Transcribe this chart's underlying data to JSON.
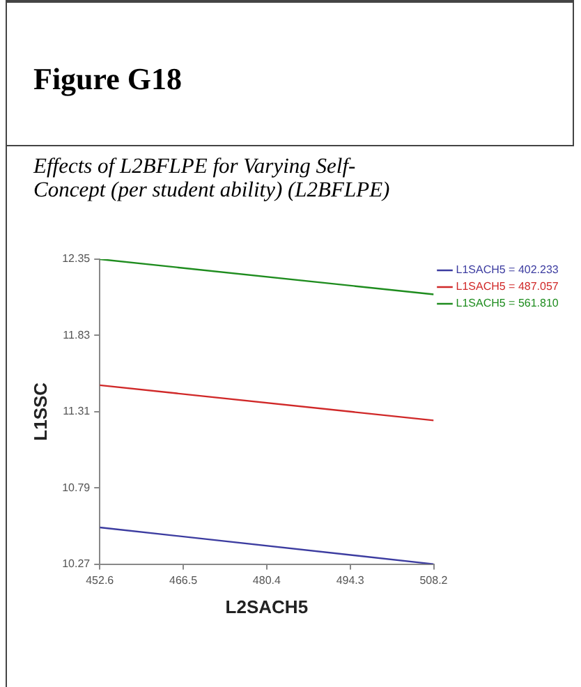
{
  "chart_data": {
    "type": "line",
    "title": "Figure G18",
    "subtitle": "Effects of L2BFLPE for Varying Self-Concept (per student ability) (L2BFLPE)",
    "xlabel": "L2SACH5",
    "ylabel": "L1SSC",
    "x": [
      452.6,
      508.2
    ],
    "series": [
      {
        "name": "L1SACH5 = 402.233",
        "color": "#3c3ca0",
        "values": [
          10.52,
          10.27
        ]
      },
      {
        "name": "L1SACH5 = 487.057",
        "color": "#d02828",
        "values": [
          11.49,
          11.25
        ]
      },
      {
        "name": "L1SACH5 = 561.810",
        "color": "#1e8c1e",
        "values": [
          12.35,
          12.11
        ]
      }
    ],
    "xlim": [
      452.6,
      508.2
    ],
    "xticks": [
      452.6,
      466.5,
      480.4,
      494.3,
      508.2
    ],
    "ylim": [
      10.27,
      12.35
    ],
    "yticks": [
      10.27,
      10.79,
      11.31,
      11.83,
      12.35
    ],
    "grid": false,
    "legend": "top right",
    "marker": "none",
    "line_style": "solid"
  }
}
